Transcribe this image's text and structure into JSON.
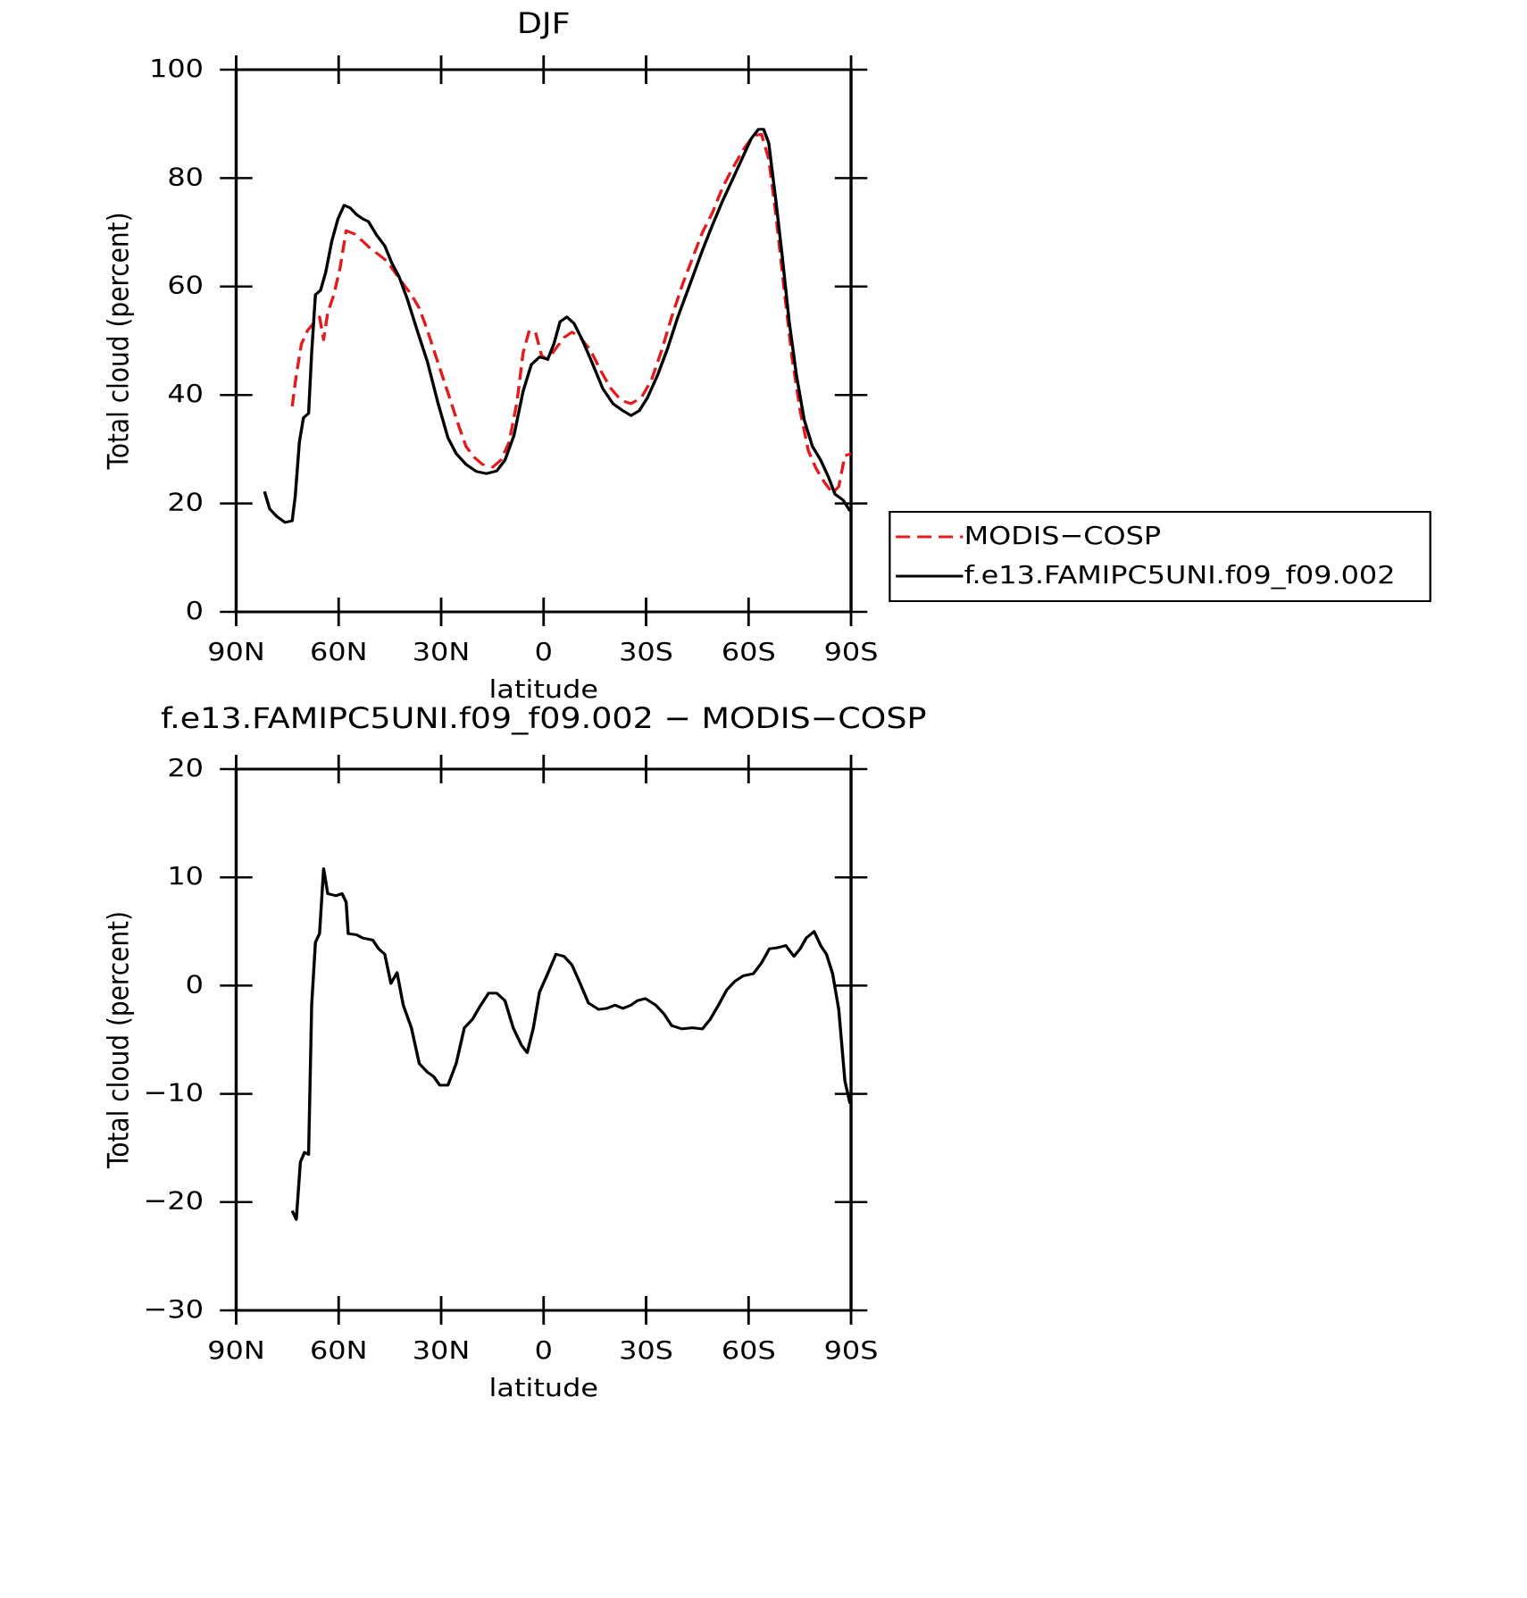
{
  "chart_data": [
    {
      "type": "line",
      "title": "DJF",
      "xlabel": "latitude",
      "ylabel": "Total cloud (percent)",
      "xlim": [
        90,
        -90
      ],
      "xticks": [
        {
          "value": 90,
          "label": "90N"
        },
        {
          "value": 60,
          "label": "60N"
        },
        {
          "value": 30,
          "label": "30N"
        },
        0,
        {
          "value": -30,
          "label": "30S"
        },
        {
          "value": -60,
          "label": "60S"
        },
        {
          "value": -90,
          "label": "90S"
        }
      ],
      "ylim": [
        0,
        100
      ],
      "yticks": [
        0,
        20,
        40,
        60,
        80,
        100
      ],
      "legend": "right",
      "series": [
        {
          "name": "MODIS−COSP",
          "color": "#e41a1c",
          "dash": "dashed",
          "x": [
            73.6,
            72.4,
            70.9,
            69.1,
            67.4,
            65.6,
            64.4,
            63.2,
            61.4,
            59.6,
            57.8,
            55.4,
            53,
            50.7,
            48.3,
            45.9,
            43.5,
            41.1,
            38.7,
            36.4,
            34,
            31,
            28,
            25,
            22.7,
            20.3,
            17.9,
            14.9,
            12.5,
            10.1,
            7.8,
            6,
            4.2,
            2.4,
            0.6,
            -1.2,
            -3.6,
            -6,
            -8.3,
            -10.7,
            -13.7,
            -16.7,
            -19.7,
            -22.7,
            -25.6,
            -28.6,
            -31.6,
            -34.6,
            -37.5,
            -40.5,
            -43.5,
            -46.5,
            -49.4,
            -52.4,
            -55.4,
            -58.4,
            -61.4,
            -63.8,
            -65.9,
            -68,
            -70.3,
            -72.7,
            -75.1,
            -77.5,
            -79.8,
            -82.2,
            -84.6,
            -86.4,
            -88.2,
            -90
          ],
          "values": [
            37.9,
            43.7,
            49.4,
            51.9,
            53.2,
            54.4,
            50.2,
            55.2,
            58.5,
            63.4,
            70.3,
            69.7,
            68.4,
            67,
            65.9,
            64.7,
            62.6,
            60.5,
            58.5,
            56,
            51.9,
            46.1,
            40.4,
            34.6,
            30.5,
            28.5,
            27.2,
            26.7,
            28,
            31.3,
            38.7,
            47.8,
            51.9,
            51.6,
            47.3,
            46.5,
            48.6,
            50.6,
            51.6,
            50.6,
            48.3,
            44.5,
            41.2,
            39,
            38.4,
            39.5,
            42.8,
            48.3,
            54.4,
            60.1,
            65.1,
            70,
            73.6,
            78.3,
            81.9,
            85.2,
            87.8,
            88.1,
            83.5,
            73.3,
            60.1,
            47,
            37.1,
            29.7,
            26.4,
            23.9,
            21.9,
            23.1,
            28.8,
            29.2
          ]
        },
        {
          "name": "f.e13.FAMIPC5UNI.f09_f09.002",
          "color": "#000000",
          "dash": "solid",
          "x": [
            81.7,
            80.2,
            78.1,
            75.7,
            73.6,
            72.7,
            71.5,
            70.3,
            68.8,
            67.9,
            66.8,
            65.3,
            63.8,
            62,
            60.2,
            58.4,
            56.6,
            54.8,
            53,
            51.3,
            48.9,
            46.5,
            44.4,
            42.3,
            39.9,
            37,
            34,
            31,
            28,
            25.6,
            22.7,
            19.7,
            16.7,
            13.7,
            11.3,
            8.7,
            6,
            3.6,
            1.2,
            -1.2,
            -3,
            -4.8,
            -6.8,
            -8.9,
            -11.3,
            -14.3,
            -17.3,
            -20.3,
            -23.2,
            -25.6,
            -28,
            -30.4,
            -33.4,
            -36.3,
            -39.3,
            -42.9,
            -46.5,
            -49.4,
            -52.4,
            -55.4,
            -58.4,
            -60.8,
            -62.9,
            -64.4,
            -65.9,
            -68,
            -69.8,
            -71.9,
            -74,
            -76.3,
            -78.7,
            -81.1,
            -83.5,
            -85.3,
            -87.7,
            -89.7
          ],
          "values": [
            22.2,
            19,
            17.6,
            16.5,
            16.8,
            21.4,
            31.3,
            35.8,
            36.6,
            47.8,
            58.5,
            59.3,
            62.6,
            68.4,
            72.5,
            75,
            74.5,
            73.3,
            72.5,
            72,
            69.5,
            67.5,
            64.3,
            61.8,
            57.7,
            51.9,
            46.1,
            38.7,
            32.1,
            29.2,
            27.2,
            25.9,
            25.5,
            26,
            28,
            32.5,
            40.7,
            45.6,
            47,
            46.6,
            49.4,
            53.5,
            54.4,
            53.2,
            50.2,
            45.8,
            41.2,
            38.4,
            37.1,
            36.2,
            37.1,
            39.5,
            43.7,
            48.6,
            54.4,
            60.5,
            66.7,
            71.3,
            75.8,
            79.9,
            84,
            87.3,
            89,
            89,
            86.5,
            75.8,
            65.9,
            53.5,
            43.7,
            35.4,
            30.5,
            28,
            24.7,
            21.7,
            20.6,
            18.6
          ]
        }
      ]
    },
    {
      "type": "line",
      "title": "f.e13.FAMIPC5UNI.f09_f09.002 − MODIS−COSP",
      "xlabel": "latitude",
      "ylabel": "Total cloud (percent)",
      "xlim": [
        90,
        -90
      ],
      "xticks": [
        {
          "value": 90,
          "label": "90N"
        },
        {
          "value": 60,
          "label": "60N"
        },
        {
          "value": 30,
          "label": "30N"
        },
        0,
        {
          "value": -30,
          "label": "30S"
        },
        {
          "value": -60,
          "label": "60S"
        },
        {
          "value": -90,
          "label": "90S"
        }
      ],
      "ylim": [
        -30,
        20
      ],
      "yticks": [
        {
          "value": -30,
          "label": "−30"
        },
        {
          "value": -20,
          "label": "−20"
        },
        {
          "value": -10,
          "label": "−10"
        },
        0,
        10,
        20
      ],
      "series": [
        {
          "color": "#000000",
          "dash": "solid",
          "x": [
            73.6,
            72.4,
            71.2,
            70,
            68.8,
            67.9,
            66.8,
            65.6,
            64.4,
            63.2,
            60.8,
            59,
            57.8,
            57.2,
            54.8,
            53,
            50,
            48.3,
            46.5,
            44.7,
            42.9,
            41.1,
            38.7,
            36.4,
            34,
            32.2,
            30.4,
            28,
            25.6,
            23.2,
            20.8,
            18.4,
            16.1,
            13.7,
            11.3,
            8.9,
            6.5,
            4.8,
            3,
            1.2,
            -1.2,
            -3.6,
            -6,
            -8.3,
            -10.7,
            -13.1,
            -16.1,
            -18.5,
            -20.9,
            -23.2,
            -25.6,
            -27.4,
            -29.8,
            -32.8,
            -35.2,
            -37.5,
            -40.5,
            -43.5,
            -46.5,
            -48.8,
            -51.2,
            -53.6,
            -56,
            -58.4,
            -61.4,
            -63.8,
            -66.1,
            -68.5,
            -70.9,
            -73.3,
            -75.1,
            -76.9,
            -79.2,
            -81.1,
            -82.8,
            -84.6,
            -86.4,
            -88.2,
            -89.7
          ],
          "values": [
            -20.8,
            -21.6,
            -16.3,
            -15.4,
            -15.6,
            -1.8,
            4,
            4.8,
            10.8,
            8.5,
            8.3,
            8.5,
            7.7,
            4.8,
            4.7,
            4.4,
            4.2,
            3.4,
            2.9,
            0.2,
            1.2,
            -1.8,
            -3.9,
            -7.2,
            -8,
            -8.4,
            -9.2,
            -9.2,
            -7.2,
            -3.9,
            -3.1,
            -1.8,
            -0.7,
            -0.7,
            -1.4,
            -3.9,
            -5.5,
            -6.2,
            -3.9,
            -0.6,
            1.1,
            2.9,
            2.7,
            1.9,
            0.2,
            -1.6,
            -2.2,
            -2.1,
            -1.8,
            -2.1,
            -1.8,
            -1.4,
            -1.2,
            -1.8,
            -2.6,
            -3.7,
            -4,
            -3.9,
            -4,
            -3.1,
            -1.8,
            -0.4,
            0.4,
            0.9,
            1.1,
            2.1,
            3.4,
            3.5,
            3.7,
            2.7,
            3.4,
            4.4,
            5,
            3.7,
            2.9,
            1.1,
            -2.2,
            -8.8,
            -10.9
          ]
        }
      ]
    }
  ]
}
